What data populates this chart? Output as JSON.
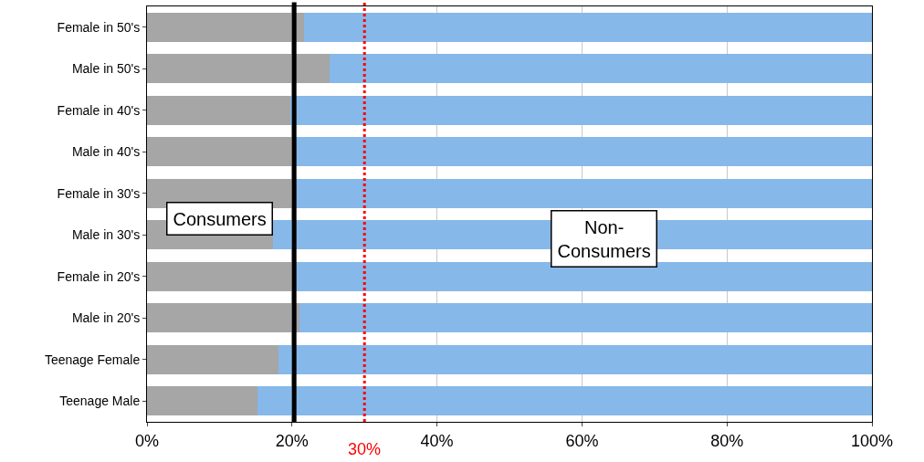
{
  "chart_data": {
    "type": "bar",
    "orientation": "horizontal",
    "stacked": true,
    "categories": [
      "Female in 50's",
      "Male in 50's",
      "Female in 40's",
      "Male in 40's",
      "Female in 30's",
      "Male in 30's",
      "Female in 20's",
      "Male in 20's",
      "Teenage Female",
      "Teenage Male"
    ],
    "series": [
      {
        "color": "#a6a6a6",
        "values": [
          21.6,
          25.2,
          19.8,
          20.0,
          20.0,
          17.4,
          20.0,
          21.0,
          18.1,
          15.2
        ]
      },
      {
        "color": "#86b8ea",
        "values": [
          78.4,
          74.8,
          80.2,
          80.0,
          80.0,
          82.6,
          80.0,
          79.0,
          81.9,
          84.8
        ]
      }
    ],
    "xlim": [
      0,
      100
    ],
    "xticks": [
      {
        "value": 0,
        "label": "0%"
      },
      {
        "value": 20,
        "label": "20%"
      },
      {
        "value": 40,
        "label": "40%"
      },
      {
        "value": 60,
        "label": "60%"
      },
      {
        "value": 80,
        "label": "80%"
      },
      {
        "value": 100,
        "label": "100%"
      }
    ],
    "grid": "x",
    "ref_lines": [
      {
        "axis": "x",
        "value": 20.3,
        "color": "#000000",
        "line_style": "solid"
      },
      {
        "axis": "x",
        "value": 30,
        "label": "30%",
        "color": "#ff0000",
        "line_style": "dotted"
      }
    ],
    "annotations": [
      "Consumers",
      "Non-\nConsumers"
    ]
  }
}
